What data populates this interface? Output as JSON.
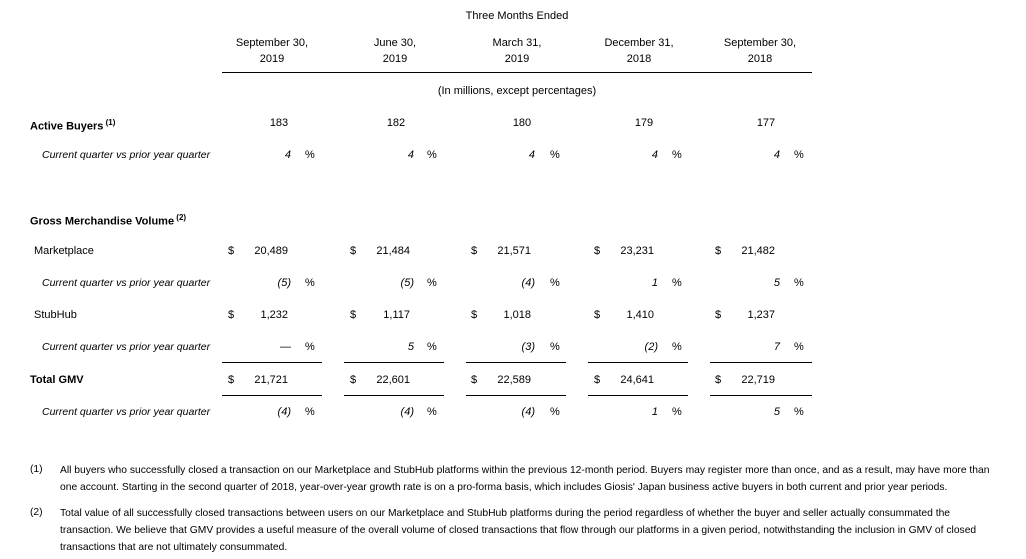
{
  "header": {
    "title": "Three Months Ended",
    "periods": [
      {
        "month": "September 30,",
        "year": "2019"
      },
      {
        "month": "June 30,",
        "year": "2019"
      },
      {
        "month": "March 31,",
        "year": "2019"
      },
      {
        "month": "December 31,",
        "year": "2018"
      },
      {
        "month": "September 30,",
        "year": "2018"
      }
    ],
    "units": "(In millions, except percentages)"
  },
  "rows": [
    {
      "label": "Active Buyers",
      "note": "(1)",
      "values": [
        "183",
        "182",
        "180",
        "179",
        "177"
      ]
    },
    {
      "label": "Current quarter vs prior year quarter",
      "unit": "%",
      "values": [
        "4",
        "4",
        "4",
        "4",
        "4"
      ]
    },
    {
      "label": "Gross Merchandise Volume",
      "note": "(2)"
    },
    {
      "label": "Marketplace",
      "currency": "$",
      "values": [
        "20,489",
        "21,484",
        "21,571",
        "23,231",
        "21,482"
      ]
    },
    {
      "label": "Current quarter vs prior year quarter",
      "unit": "%",
      "values": [
        "(5)",
        "(5)",
        "(4)",
        "1",
        "5"
      ]
    },
    {
      "label": "StubHub",
      "currency": "$",
      "values": [
        "1,232",
        "1,117",
        "1,018",
        "1,410",
        "1,237"
      ]
    },
    {
      "label": "Current quarter vs prior year quarter",
      "unit": "%",
      "values": [
        "—",
        "5",
        "(3)",
        "(2)",
        "7"
      ]
    },
    {
      "label": "Total GMV",
      "currency": "$",
      "values": [
        "21,721",
        "22,601",
        "22,589",
        "24,641",
        "22,719"
      ]
    },
    {
      "label": "Current quarter vs prior year quarter",
      "unit": "%",
      "values": [
        "(4)",
        "(4)",
        "(4)",
        "1",
        "5"
      ]
    }
  ],
  "footnotes": [
    {
      "marker": "(1)",
      "text": "All buyers who successfully closed a transaction on our Marketplace and StubHub platforms within the previous 12-month period. Buyers may register more than once, and as a result, may have more than one account. Starting in the second quarter of 2018, year-over-year growth rate is on a pro-forma basis, which includes Giosis' Japan business active buyers in both current and prior year periods."
    },
    {
      "marker": "(2)",
      "text": "Total value of all successfully closed transactions between users on our Marketplace and StubHub platforms during the period regardless of whether the buyer and seller actually consummated the transaction. We believe that GMV provides a useful measure of the overall volume of closed transactions that flow through our platforms in a given period, notwithstanding the inclusion in GMV of closed transactions that are not ultimately consummated."
    }
  ]
}
